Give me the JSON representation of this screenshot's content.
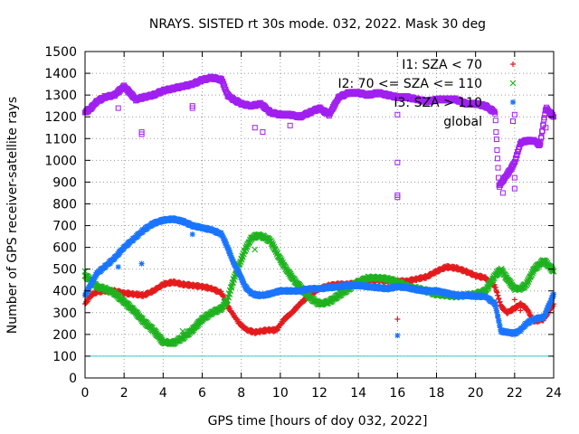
{
  "chart_data": {
    "type": "scatter",
    "title": "NRAYS. SISTED rt 30s mode. 032, 2022. Mask 30 deg",
    "xlabel": "GPS time [hours of doy 032, 2022]",
    "ylabel": "Number of GPS receiver-satellite rays",
    "xlim": [
      0,
      24
    ],
    "ylim": [
      0,
      1500
    ],
    "x_ticks": [
      0,
      2,
      4,
      6,
      8,
      10,
      12,
      14,
      16,
      18,
      20,
      22,
      24
    ],
    "y_ticks": [
      0,
      100,
      200,
      300,
      400,
      500,
      600,
      700,
      800,
      900,
      1000,
      1100,
      1200,
      1300,
      1400,
      1500
    ],
    "grid": true,
    "legend_position": "top-right",
    "reference_line": {
      "y": 100,
      "color": "#33cccc"
    },
    "series": [
      {
        "name": "I1: SZA < 70",
        "marker": "+",
        "color": "#e41a1c",
        "points": [
          [
            0,
            340
          ],
          [
            0.3,
            380
          ],
          [
            0.6,
            395
          ],
          [
            1,
            400
          ],
          [
            1.5,
            400
          ],
          [
            2,
            390
          ],
          [
            2.5,
            385
          ],
          [
            3,
            380
          ],
          [
            3.5,
            400
          ],
          [
            4,
            430
          ],
          [
            4.5,
            440
          ],
          [
            5,
            430
          ],
          [
            5.5,
            425
          ],
          [
            6,
            420
          ],
          [
            6.5,
            410
          ],
          [
            7,
            390
          ],
          [
            7.3,
            330
          ],
          [
            7.6,
            290
          ],
          [
            7.9,
            250
          ],
          [
            8.3,
            220
          ],
          [
            8.7,
            210
          ],
          [
            9,
            215
          ],
          [
            9.4,
            220
          ],
          [
            9.8,
            220
          ],
          [
            10.2,
            270
          ],
          [
            10.6,
            300
          ],
          [
            11,
            340
          ],
          [
            11.5,
            380
          ],
          [
            12,
            410
          ],
          [
            12.5,
            425
          ],
          [
            13,
            430
          ],
          [
            13.5,
            430
          ],
          [
            14,
            440
          ],
          [
            14.5,
            450
          ],
          [
            15,
            450
          ],
          [
            15.5,
            445
          ],
          [
            16,
            445
          ],
          [
            16.5,
            445
          ],
          [
            17,
            455
          ],
          [
            17.5,
            465
          ],
          [
            18,
            490
          ],
          [
            18.5,
            510
          ],
          [
            19,
            505
          ],
          [
            19.5,
            490
          ],
          [
            20,
            470
          ],
          [
            20.5,
            460
          ],
          [
            21,
            420
          ],
          [
            21.3,
            330
          ],
          [
            21.6,
            300
          ],
          [
            22,
            320
          ],
          [
            22.3,
            340
          ],
          [
            22.6,
            320
          ],
          [
            23,
            260
          ],
          [
            23.5,
            270
          ],
          [
            24,
            340
          ]
        ],
        "outliers": [
          [
            16,
            270
          ],
          [
            22,
            360
          ],
          [
            22.3,
            310
          ]
        ]
      },
      {
        "name": "I2: 70 <= SZA <= 110",
        "marker": "x",
        "color": "#1fb31f",
        "points": [
          [
            0,
            470
          ],
          [
            0.3,
            450
          ],
          [
            0.6,
            420
          ],
          [
            1,
            410
          ],
          [
            1.5,
            390
          ],
          [
            2,
            350
          ],
          [
            2.5,
            310
          ],
          [
            3,
            260
          ],
          [
            3.5,
            220
          ],
          [
            4,
            165
          ],
          [
            4.5,
            160
          ],
          [
            5,
            185
          ],
          [
            5.5,
            220
          ],
          [
            6,
            270
          ],
          [
            6.5,
            300
          ],
          [
            7,
            320
          ],
          [
            7.3,
            360
          ],
          [
            7.6,
            450
          ],
          [
            7.9,
            520
          ],
          [
            8.2,
            590
          ],
          [
            8.5,
            640
          ],
          [
            8.8,
            655
          ],
          [
            9.1,
            650
          ],
          [
            9.5,
            630
          ],
          [
            9.9,
            560
          ],
          [
            10.3,
            500
          ],
          [
            10.7,
            450
          ],
          [
            11.1,
            410
          ],
          [
            11.5,
            370
          ],
          [
            12,
            340
          ],
          [
            12.5,
            350
          ],
          [
            13,
            380
          ],
          [
            13.5,
            410
          ],
          [
            14,
            440
          ],
          [
            14.5,
            460
          ],
          [
            15,
            460
          ],
          [
            15.5,
            455
          ],
          [
            16,
            440
          ],
          [
            16.5,
            420
          ],
          [
            17,
            410
          ],
          [
            17.5,
            400
          ],
          [
            18,
            385
          ],
          [
            18.5,
            380
          ],
          [
            19,
            375
          ],
          [
            19.5,
            380
          ],
          [
            20,
            385
          ],
          [
            20.5,
            400
          ],
          [
            21,
            470
          ],
          [
            21.3,
            500
          ],
          [
            21.5,
            470
          ],
          [
            22,
            410
          ],
          [
            22.3,
            410
          ],
          [
            22.6,
            430
          ],
          [
            23,
            500
          ],
          [
            23.5,
            540
          ],
          [
            24,
            490
          ]
        ],
        "outliers": [
          [
            0,
            490
          ],
          [
            5,
            215
          ],
          [
            8.7,
            590
          ],
          [
            22.5,
            430
          ]
        ]
      },
      {
        "name": "I3: SZA > 110",
        "marker": "*",
        "color": "#1a75ff",
        "points": [
          [
            0,
            380
          ],
          [
            0.3,
            430
          ],
          [
            0.6,
            480
          ],
          [
            1,
            510
          ],
          [
            1.5,
            550
          ],
          [
            2,
            600
          ],
          [
            2.5,
            640
          ],
          [
            3,
            680
          ],
          [
            3.5,
            710
          ],
          [
            4,
            725
          ],
          [
            4.5,
            730
          ],
          [
            5,
            720
          ],
          [
            5.5,
            700
          ],
          [
            6,
            690
          ],
          [
            6.5,
            680
          ],
          [
            7,
            660
          ],
          [
            7.3,
            600
          ],
          [
            7.6,
            530
          ],
          [
            7.9,
            480
          ],
          [
            8.2,
            420
          ],
          [
            8.5,
            390
          ],
          [
            8.8,
            380
          ],
          [
            9.2,
            380
          ],
          [
            9.6,
            390
          ],
          [
            10,
            400
          ],
          [
            10.5,
            400
          ],
          [
            11,
            400
          ],
          [
            11.5,
            410
          ],
          [
            12,
            410
          ],
          [
            12.5,
            415
          ],
          [
            13,
            420
          ],
          [
            13.5,
            425
          ],
          [
            14,
            425
          ],
          [
            14.5,
            420
          ],
          [
            15,
            415
          ],
          [
            15.5,
            410
          ],
          [
            16,
            420
          ],
          [
            16.5,
            415
          ],
          [
            17,
            405
          ],
          [
            17.5,
            400
          ],
          [
            18,
            400
          ],
          [
            18.5,
            390
          ],
          [
            19,
            380
          ],
          [
            19.5,
            380
          ],
          [
            20,
            375
          ],
          [
            20.5,
            375
          ],
          [
            21,
            340
          ],
          [
            21.3,
            215
          ],
          [
            21.6,
            210
          ],
          [
            22,
            205
          ],
          [
            22.3,
            220
          ],
          [
            22.6,
            250
          ],
          [
            23,
            270
          ],
          [
            23.5,
            280
          ],
          [
            24,
            385
          ]
        ],
        "outliers": [
          [
            1.7,
            510
          ],
          [
            2.9,
            525
          ],
          [
            5.5,
            660
          ],
          [
            16,
            195
          ]
        ]
      },
      {
        "name": "global",
        "marker": "square",
        "color": "#a020f0",
        "points": [
          [
            0,
            1220
          ],
          [
            0.3,
            1240
          ],
          [
            0.6,
            1270
          ],
          [
            1,
            1290
          ],
          [
            1.5,
            1300
          ],
          [
            2,
            1340
          ],
          [
            2.3,
            1310
          ],
          [
            2.6,
            1280
          ],
          [
            3,
            1290
          ],
          [
            3.5,
            1300
          ],
          [
            4,
            1320
          ],
          [
            4.5,
            1330
          ],
          [
            5,
            1340
          ],
          [
            5.5,
            1350
          ],
          [
            6,
            1370
          ],
          [
            6.5,
            1380
          ],
          [
            7,
            1370
          ],
          [
            7.3,
            1300
          ],
          [
            7.6,
            1280
          ],
          [
            8,
            1260
          ],
          [
            8.5,
            1250
          ],
          [
            9,
            1260
          ],
          [
            9.5,
            1220
          ],
          [
            10,
            1210
          ],
          [
            10.5,
            1210
          ],
          [
            11,
            1200
          ],
          [
            11.5,
            1220
          ],
          [
            12,
            1240
          ],
          [
            12.5,
            1210
          ],
          [
            13,
            1290
          ],
          [
            13.5,
            1310
          ],
          [
            14,
            1310
          ],
          [
            14.5,
            1300
          ],
          [
            15,
            1310
          ],
          [
            15.5,
            1300
          ],
          [
            16,
            1290
          ],
          [
            16.5,
            1290
          ],
          [
            17,
            1280
          ],
          [
            17.5,
            1270
          ],
          [
            18,
            1280
          ],
          [
            18.5,
            1280
          ],
          [
            19,
            1280
          ],
          [
            19.5,
            1260
          ],
          [
            20,
            1260
          ],
          [
            20.5,
            1250
          ],
          [
            21,
            1220
          ],
          [
            21.2,
            880
          ],
          [
            21.5,
            920
          ],
          [
            21.8,
            960
          ],
          [
            22,
            990
          ],
          [
            22.3,
            1080
          ],
          [
            22.6,
            1090
          ],
          [
            23,
            1090
          ],
          [
            23.3,
            1070
          ],
          [
            23.6,
            1240
          ],
          [
            24,
            1200
          ]
        ],
        "outliers": [
          [
            1.7,
            1240
          ],
          [
            2.9,
            1130
          ],
          [
            2.9,
            1120
          ],
          [
            5.5,
            1250
          ],
          [
            5.5,
            1240
          ],
          [
            8.7,
            1150
          ],
          [
            9.1,
            1130
          ],
          [
            10.5,
            1160
          ],
          [
            16,
            1210
          ],
          [
            16,
            990
          ],
          [
            16,
            840
          ],
          [
            16,
            830
          ],
          [
            21.4,
            850
          ],
          [
            22,
            1210
          ],
          [
            22,
            870
          ],
          [
            22,
            920
          ],
          [
            23.6,
            1150
          ]
        ]
      }
    ]
  }
}
